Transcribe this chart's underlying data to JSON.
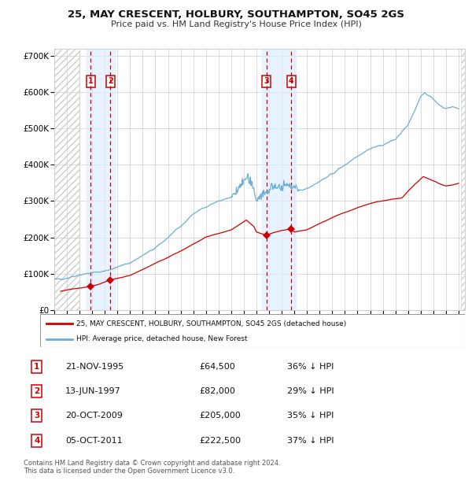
{
  "title_line1": "25, MAY CRESCENT, HOLBURY, SOUTHAMPTON, SO45 2GS",
  "title_line2": "Price paid vs. HM Land Registry's House Price Index (HPI)",
  "legend_label1": "25, MAY CRESCENT, HOLBURY, SOUTHAMPTON, SO45 2GS (detached house)",
  "legend_label2": "HPI: Average price, detached house, New Forest",
  "footer": "Contains HM Land Registry data © Crown copyright and database right 2024.\nThis data is licensed under the Open Government Licence v3.0.",
  "sales": [
    {
      "num": 1,
      "date": "21-NOV-1995",
      "price": 64500,
      "pct": "36%",
      "dir": "↓",
      "x_year": 1995.89
    },
    {
      "num": 2,
      "date": "13-JUN-1997",
      "price": 82000,
      "pct": "29%",
      "dir": "↓",
      "x_year": 1997.45
    },
    {
      "num": 3,
      "date": "20-OCT-2009",
      "price": 205000,
      "pct": "35%",
      "dir": "↓",
      "x_year": 2009.8
    },
    {
      "num": 4,
      "date": "05-OCT-2011",
      "price": 222500,
      "pct": "37%",
      "dir": "↓",
      "x_year": 2011.75
    }
  ],
  "hpi_color": "#6baed6",
  "price_color": "#cc0000",
  "sale_marker_color": "#cc0000",
  "shade_color": "#ddeeff",
  "dashed_color": "#cc0000",
  "grid_color": "#cccccc",
  "hatch_color": "#cccccc",
  "ylim": [
    0,
    720000
  ],
  "yticks": [
    0,
    100000,
    200000,
    300000,
    400000,
    500000,
    600000,
    700000
  ],
  "ytick_labels": [
    "£0",
    "£100K",
    "£200K",
    "£300K",
    "£400K",
    "£500K",
    "£600K",
    "£700K"
  ],
  "xlim_start": 1993.0,
  "xlim_end": 2025.5,
  "hatch_region_end": 1995.0,
  "hatch_region_end2": 2025.2,
  "hpi_anchors": [
    [
      1993.0,
      83000
    ],
    [
      1994.0,
      88000
    ],
    [
      1995.0,
      97000
    ],
    [
      1996.0,
      102000
    ],
    [
      1997.0,
      107000
    ],
    [
      1998.0,
      118000
    ],
    [
      1999.0,
      130000
    ],
    [
      2000.0,
      150000
    ],
    [
      2001.0,
      170000
    ],
    [
      2002.0,
      200000
    ],
    [
      2003.0,
      230000
    ],
    [
      2004.0,
      265000
    ],
    [
      2005.0,
      285000
    ],
    [
      2006.0,
      300000
    ],
    [
      2007.0,
      310000
    ],
    [
      2007.5,
      330000
    ],
    [
      2008.0,
      355000
    ],
    [
      2008.3,
      365000
    ],
    [
      2008.7,
      340000
    ],
    [
      2009.0,
      305000
    ],
    [
      2009.3,
      315000
    ],
    [
      2009.6,
      320000
    ],
    [
      2009.9,
      325000
    ],
    [
      2010.2,
      340000
    ],
    [
      2010.5,
      335000
    ],
    [
      2010.8,
      340000
    ],
    [
      2011.0,
      340000
    ],
    [
      2011.5,
      345000
    ],
    [
      2012.0,
      335000
    ],
    [
      2012.5,
      330000
    ],
    [
      2013.0,
      335000
    ],
    [
      2014.0,
      355000
    ],
    [
      2015.0,
      375000
    ],
    [
      2016.0,
      400000
    ],
    [
      2017.0,
      425000
    ],
    [
      2018.0,
      445000
    ],
    [
      2019.0,
      455000
    ],
    [
      2020.0,
      470000
    ],
    [
      2021.0,
      510000
    ],
    [
      2021.5,
      545000
    ],
    [
      2022.0,
      590000
    ],
    [
      2022.3,
      600000
    ],
    [
      2022.7,
      590000
    ],
    [
      2023.0,
      580000
    ],
    [
      2023.5,
      565000
    ],
    [
      2024.0,
      555000
    ],
    [
      2024.5,
      560000
    ],
    [
      2025.0,
      555000
    ]
  ],
  "price_anchors": [
    [
      1993.5,
      52000
    ],
    [
      1994.5,
      58000
    ],
    [
      1995.89,
      64500
    ],
    [
      1997.45,
      82000
    ],
    [
      1999.0,
      95000
    ],
    [
      2001.0,
      128000
    ],
    [
      2003.0,
      162000
    ],
    [
      2005.0,
      200000
    ],
    [
      2007.0,
      220000
    ],
    [
      2008.2,
      248000
    ],
    [
      2008.8,
      230000
    ],
    [
      2009.0,
      215000
    ],
    [
      2009.8,
      205000
    ],
    [
      2010.3,
      212000
    ],
    [
      2010.8,
      218000
    ],
    [
      2011.0,
      220000
    ],
    [
      2011.75,
      222500
    ],
    [
      2012.0,
      215000
    ],
    [
      2013.0,
      220000
    ],
    [
      2014.0,
      238000
    ],
    [
      2015.5,
      262000
    ],
    [
      2017.0,
      282000
    ],
    [
      2018.5,
      298000
    ],
    [
      2019.5,
      303000
    ],
    [
      2020.5,
      308000
    ],
    [
      2021.5,
      345000
    ],
    [
      2022.2,
      368000
    ],
    [
      2022.8,
      358000
    ],
    [
      2023.5,
      348000
    ],
    [
      2024.0,
      342000
    ],
    [
      2025.0,
      348000
    ]
  ]
}
